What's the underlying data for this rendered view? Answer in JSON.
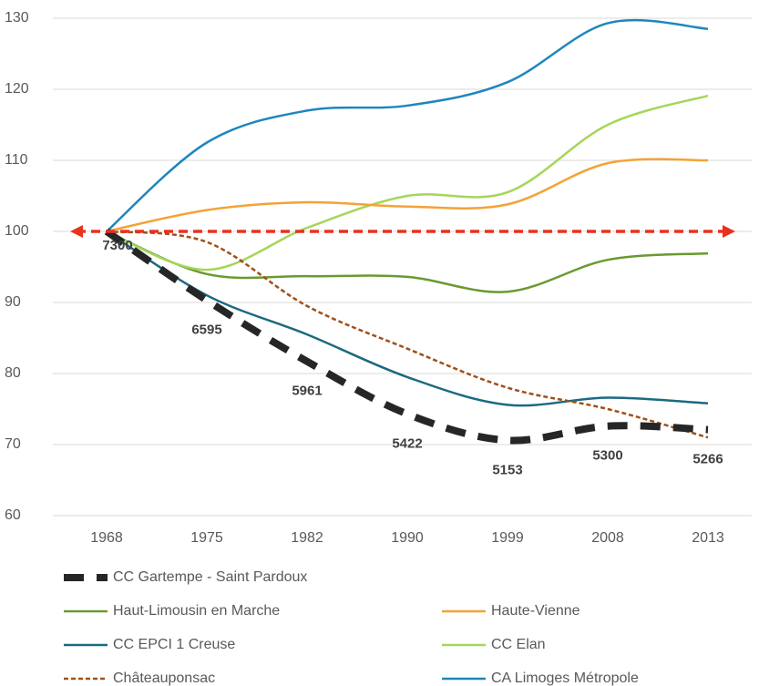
{
  "chart_data": {
    "type": "line",
    "categories": [
      "1968",
      "1975",
      "1982",
      "1990",
      "1999",
      "2008",
      "2013"
    ],
    "ylim": [
      60,
      130
    ],
    "yticks": [
      60,
      70,
      80,
      90,
      100,
      110,
      120,
      130
    ],
    "grid": true,
    "reference": {
      "value": 100,
      "color": "#e8321e"
    },
    "series": [
      {
        "name": "CC Gartempe - Saint Pardoux",
        "color": "#262626",
        "style": "thick-dashed",
        "values": [
          100,
          90.3,
          81.7,
          74.3,
          70.6,
          72.6,
          72.1
        ],
        "population": [
          7300,
          6595,
          5961,
          5422,
          5153,
          5300,
          5266
        ]
      },
      {
        "name": "Haute-Vienne",
        "color": "#f4a236",
        "values": [
          100,
          103,
          104.1,
          103.5,
          103.8,
          109.6,
          110
        ]
      },
      {
        "name": "Haut-Limousin en Marche",
        "color": "#6a9a31",
        "values": [
          100,
          94,
          93.7,
          93.6,
          91.5,
          96,
          96.9
        ]
      },
      {
        "name": "CC Elan",
        "color": "#a6d55a",
        "values": [
          100,
          94.6,
          100.5,
          105,
          105.5,
          115,
          119.1
        ]
      },
      {
        "name": "CC EPCI 1 Creuse",
        "color": "#1b6a82",
        "values": [
          100,
          91,
          85.5,
          79.5,
          75.6,
          76.6,
          75.8
        ]
      },
      {
        "name": "CA Limoges Métropole",
        "color": "#1f86bd",
        "values": [
          100,
          112.5,
          117,
          117.7,
          121,
          129.3,
          128.5
        ]
      },
      {
        "name": "Châteauponsac",
        "color": "#a0501a",
        "style": "dashed",
        "values": [
          100,
          98.5,
          89.5,
          83.5,
          78,
          75,
          71
        ]
      }
    ]
  }
}
